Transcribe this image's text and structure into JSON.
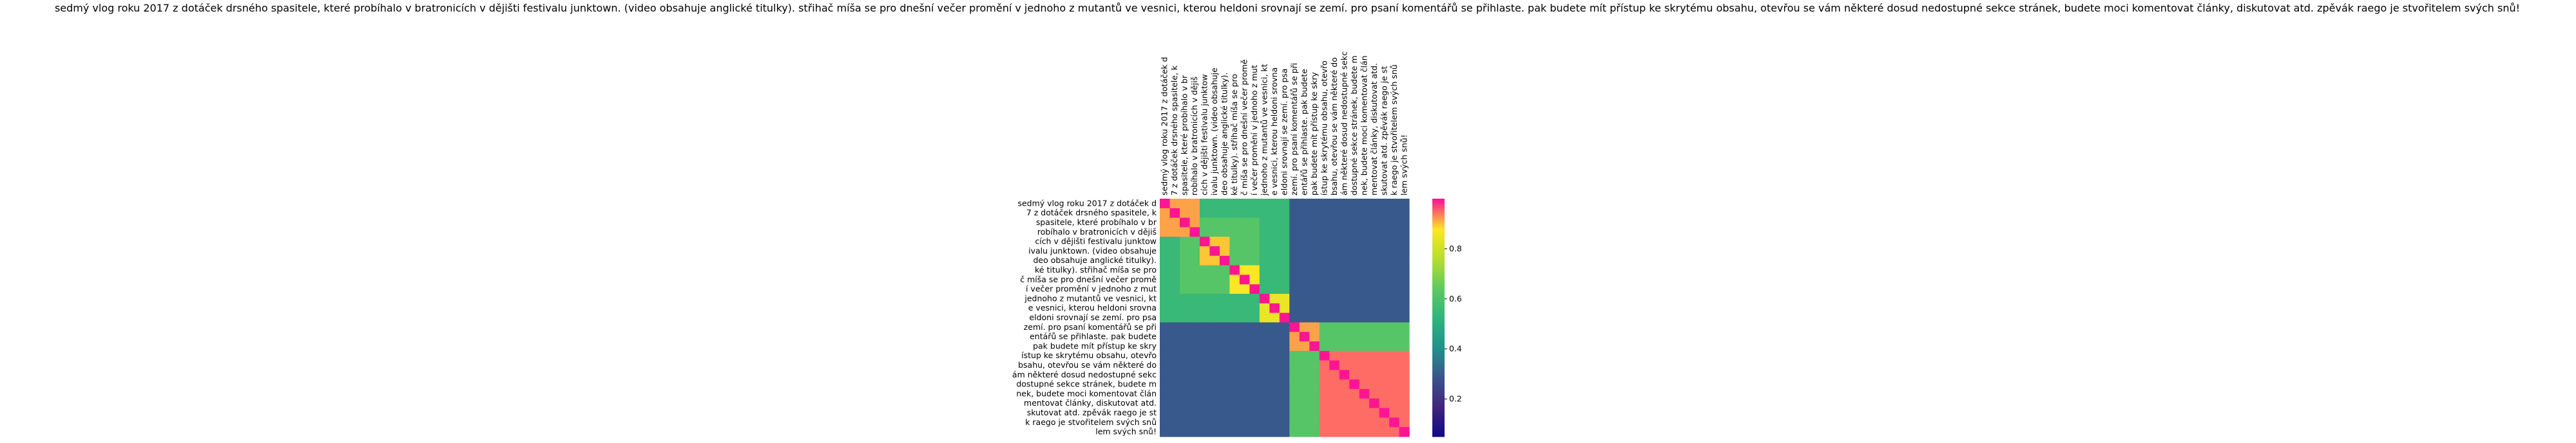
{
  "chart_data": {
    "type": "heatmap",
    "title": "sedmý vlog roku 2017 z dotáček drsného spasitele, které probíhalo v bratronicích v dějišti festivalu junktown. (video obsahuje anglické titulky). střihač míša se pro dnešní večer promění v jednoho z mutantů ve vesnici, kterou heldoni srovnají se zemí. pro psaní komentářů se přihlaste. pak budete mít přístup ke skrytému obsahu, otevřou se vám některé dosud nedostupné sekce stránek, budete moci komentovat články, diskutovat atd. zpěvák raego je stvořitelem svých snů!",
    "labels": [
      "sedmý vlog roku 2017 z dotáček d",
      "7 z dotáček drsného spasitele, k",
      "spasitele, které probíhalo v br",
      "robíhalo v bratronicích v dějiš",
      "cích v dějišti festivalu junktow",
      "ivalu junktown. (video obsahuje",
      "deo obsahuje anglické titulky).",
      "ké titulky). střihač míša se pro",
      "č míša se pro dnešní večer promě",
      "í večer promění v jednoho z mut",
      "jednoho z mutantů ve vesnici, kt",
      "e vesnici, kterou heldoni srovna",
      "eldoni srovnají se zemí. pro psa",
      "zemí. pro psaní komentářů se při",
      "entářů se přihlaste. pak budete",
      "pak budete mít přístup ke skry",
      "ístup ke skrytému obsahu, otevřo",
      "bsahu, otevřou se vám některé do",
      "ám některé dosud nedostupné sekc",
      "dostupné sekce stránek, budete m",
      "nek, budete moci komentovat člán",
      "mentovat články, diskutovat atd.",
      "skutovat atd. zpěvák raego je st",
      "k raego je stvořitelem svých snů",
      "lem svých snů!"
    ],
    "colorbar": {
      "ticks": [
        0.2,
        0.4,
        0.6,
        0.8
      ],
      "vmin": 0.05,
      "vmax": 1.0
    },
    "colormap": [
      "#0d0887",
      "#40257a",
      "#3b528b",
      "#21918c",
      "#2fb47c",
      "#5ec962",
      "#b5de2b",
      "#fde725",
      "#ff1493"
    ],
    "blocks": [
      {
        "rows": [
          0,
          3
        ],
        "cols": [
          0,
          3
        ],
        "value": 0.92
      },
      {
        "rows": [
          4,
          6
        ],
        "cols": [
          4,
          6
        ],
        "value": 0.9
      },
      {
        "rows": [
          7,
          9
        ],
        "cols": [
          7,
          9
        ],
        "value": 0.88
      },
      {
        "rows": [
          10,
          12
        ],
        "cols": [
          10,
          12
        ],
        "value": 0.85
      },
      {
        "rows": [
          13,
          15
        ],
        "cols": [
          13,
          15
        ],
        "value": 0.92
      },
      {
        "rows": [
          16,
          24
        ],
        "cols": [
          16,
          24
        ],
        "value": 0.95
      },
      {
        "rows": [
          2,
          9
        ],
        "cols": [
          2,
          9
        ],
        "value": 0.62
      },
      {
        "rows": [
          0,
          12
        ],
        "cols": [
          0,
          12
        ],
        "value": 0.55
      },
      {
        "rows": [
          13,
          24
        ],
        "cols": [
          0,
          12
        ],
        "value": 0.3
      },
      {
        "rows": [
          0,
          12
        ],
        "cols": [
          13,
          24
        ],
        "value": 0.3
      },
      {
        "rows": [
          13,
          15
        ],
        "cols": [
          16,
          24
        ],
        "value": 0.62
      },
      {
        "rows": [
          16,
          24
        ],
        "cols": [
          13,
          15
        ],
        "value": 0.62
      }
    ],
    "diagonal_value": 1.0
  }
}
